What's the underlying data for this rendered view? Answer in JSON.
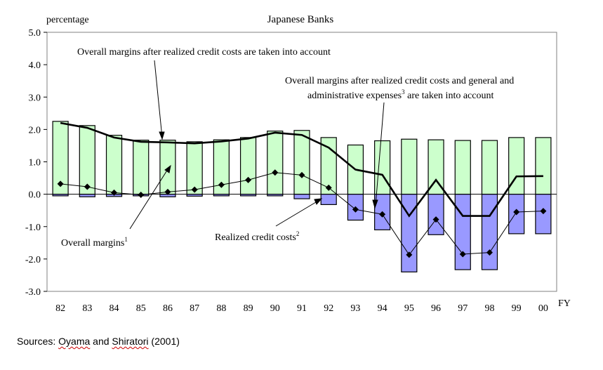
{
  "chart_data": {
    "type": "bar",
    "title": "Japanese Banks",
    "ylabel": "percentage",
    "xlabel": "FY",
    "ylim": [
      -3.0,
      5.0
    ],
    "yticks": [
      "5.0",
      "4.0",
      "3.0",
      "2.0",
      "1.0",
      "0.0",
      "-1.0",
      "-2.0",
      "-3.0"
    ],
    "categories": [
      "82",
      "83",
      "84",
      "85",
      "86",
      "87",
      "88",
      "89",
      "90",
      "91",
      "92",
      "93",
      "94",
      "95",
      "96",
      "97",
      "98",
      "99",
      "00"
    ],
    "series": [
      {
        "kind": "bar",
        "color": "#ccffcc",
        "values": [
          2.25,
          2.12,
          1.82,
          1.67,
          1.67,
          1.62,
          1.68,
          1.75,
          1.95,
          1.97,
          1.75,
          1.52,
          1.65,
          1.7,
          1.68,
          1.66,
          1.66,
          1.75,
          1.75
        ]
      },
      {
        "kind": "bar",
        "color": "#9999ff",
        "values": [
          -0.05,
          -0.08,
          -0.07,
          -0.05,
          -0.08,
          -0.06,
          -0.05,
          -0.05,
          -0.05,
          -0.14,
          -0.32,
          -0.8,
          -1.1,
          -2.4,
          -1.25,
          -2.33,
          -2.33,
          -1.22,
          -1.22
        ]
      },
      {
        "kind": "line",
        "color": "#000000",
        "values": [
          2.2,
          2.05,
          1.75,
          1.62,
          1.6,
          1.57,
          1.63,
          1.72,
          1.9,
          1.83,
          1.44,
          0.76,
          0.6,
          -0.67,
          0.44,
          -0.67,
          -0.67,
          0.55,
          0.56
        ]
      },
      {
        "kind": "line-marker",
        "color": "#000000",
        "values": [
          0.32,
          0.23,
          0.05,
          -0.02,
          0.07,
          0.14,
          0.29,
          0.44,
          0.67,
          0.59,
          0.2,
          -0.47,
          -0.62,
          -1.87,
          -0.78,
          -1.85,
          -1.8,
          -0.55,
          -0.52
        ]
      }
    ],
    "annotations": {
      "after_credit": "Overall margins after realized credit costs are taken into account",
      "after_expenses_line1": "Overall margins after realized credit costs and general and",
      "after_expenses_line2a": "administrative expenses",
      "after_expenses_sup": "3",
      "after_expenses_line2b": " are taken into account",
      "overall": "Overall margins",
      "overall_sup": "1",
      "credit": "Realized credit costs",
      "credit_sup": "2"
    }
  },
  "source": {
    "prefix": "Sources: ",
    "author1": "Oyama",
    "and": " and ",
    "author2": "Shiratori",
    "year": " (2001)"
  }
}
